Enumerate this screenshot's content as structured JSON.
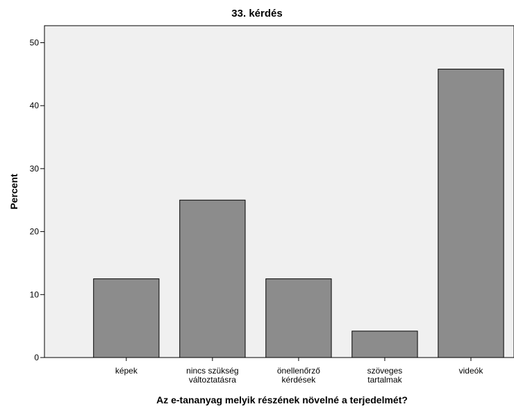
{
  "colors": {
    "plot_background": "#f0f0f0",
    "bar_fill": "#8c8c8c",
    "bar_stroke": "#000000",
    "axis": "#000000"
  },
  "chart_data": {
    "type": "bar",
    "title": "33. kérdés",
    "xlabel": "Az e-tananyag melyik részének növelné a terjedelmét?",
    "ylabel": "Percent",
    "categories": [
      [
        "képek"
      ],
      [
        "nincs szükség",
        "változtatásra"
      ],
      [
        "önellenőrző",
        "kérdések"
      ],
      [
        "szöveges",
        "tartalmak"
      ],
      [
        "videók"
      ]
    ],
    "values": [
      12.5,
      25.0,
      12.5,
      4.2,
      45.8
    ],
    "ylim": [
      0,
      52.7
    ],
    "yticks": [
      0,
      10,
      20,
      30,
      40,
      50
    ],
    "grid": false,
    "legend": "none"
  }
}
